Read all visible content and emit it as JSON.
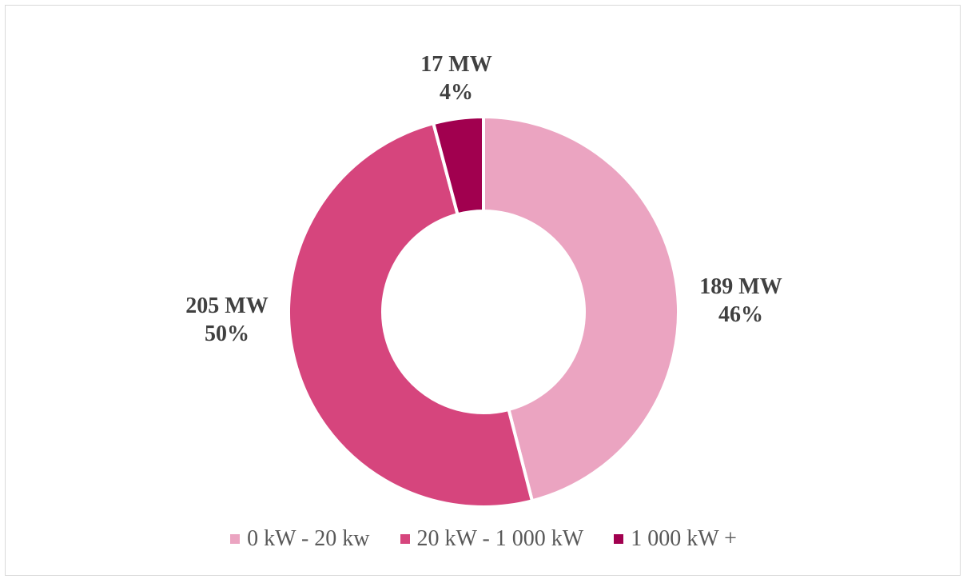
{
  "chart_data": {
    "type": "pie",
    "variant": "donut",
    "title": "",
    "categories": [
      "0 kW - 20 kw",
      "20 kW - 1 000 kW",
      "1 000 kW +"
    ],
    "values": [
      189,
      205,
      17
    ],
    "unit": "MW",
    "percentages": [
      46,
      50,
      4
    ],
    "colors": [
      "#eba4c1",
      "#d6457d",
      "#a1004f"
    ],
    "data_labels": [
      {
        "line1": "189 MW",
        "line2": "46%"
      },
      {
        "line1": "205 MW",
        "line2": "50%"
      },
      {
        "line1": "17 MW",
        "line2": "4%"
      }
    ],
    "legend": {
      "position": "bottom",
      "entries": [
        "0 kW - 20 kw",
        "20 kW - 1 000 kW",
        "1 000 kW +"
      ]
    }
  }
}
